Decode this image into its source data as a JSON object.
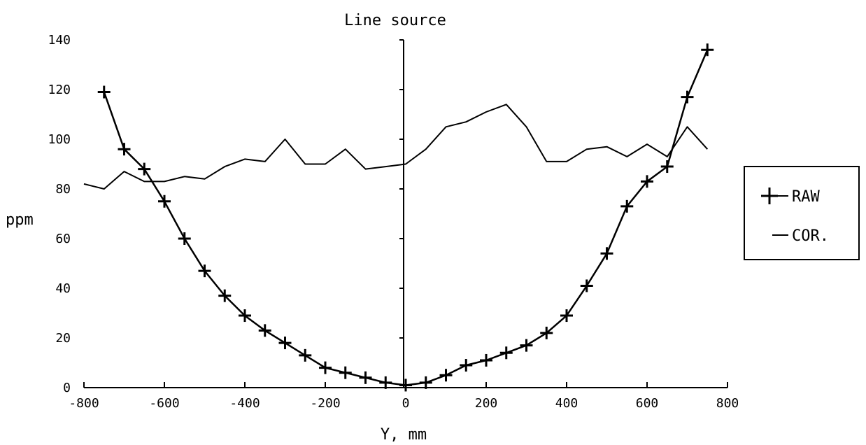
{
  "chart_data": {
    "type": "line",
    "title": "Line source",
    "xlabel": "Y, mm",
    "ylabel": "ppm",
    "xlim": [
      -800,
      800
    ],
    "ylim": [
      0,
      140
    ],
    "xticks": [
      -800,
      -600,
      -400,
      -200,
      0,
      200,
      400,
      600,
      800
    ],
    "yticks": [
      0,
      20,
      40,
      60,
      80,
      100,
      120,
      140
    ],
    "grid": false,
    "legend_position": "right",
    "series": [
      {
        "name": "RAW",
        "marker": "plus",
        "x": [
          -750,
          -700,
          -650,
          -600,
          -550,
          -500,
          -450,
          -400,
          -350,
          -300,
          -250,
          -200,
          -150,
          -100,
          -50,
          0,
          50,
          100,
          150,
          200,
          250,
          300,
          350,
          400,
          450,
          500,
          550,
          600,
          650,
          700,
          750
        ],
        "values": [
          119,
          96,
          88,
          75,
          60,
          47,
          37,
          29,
          23,
          18,
          13,
          8,
          6,
          4,
          2,
          1,
          2,
          5,
          9,
          11,
          14,
          17,
          22,
          29,
          41,
          54,
          73,
          83,
          89,
          117,
          136
        ]
      },
      {
        "name": "COR.",
        "marker": "none",
        "x": [
          -800,
          -750,
          -700,
          -650,
          -600,
          -550,
          -500,
          -450,
          -400,
          -350,
          -300,
          -250,
          -200,
          -150,
          -100,
          -50,
          0,
          50,
          100,
          150,
          200,
          250,
          300,
          350,
          400,
          450,
          500,
          550,
          600,
          650,
          700,
          750
        ],
        "values": [
          82,
          80,
          87,
          83,
          83,
          85,
          84,
          89,
          92,
          91,
          100,
          90,
          90,
          96,
          88,
          89,
          90,
          96,
          105,
          107,
          111,
          114,
          105,
          91,
          91,
          96,
          97,
          93,
          98,
          93,
          105,
          96
        ]
      }
    ]
  }
}
